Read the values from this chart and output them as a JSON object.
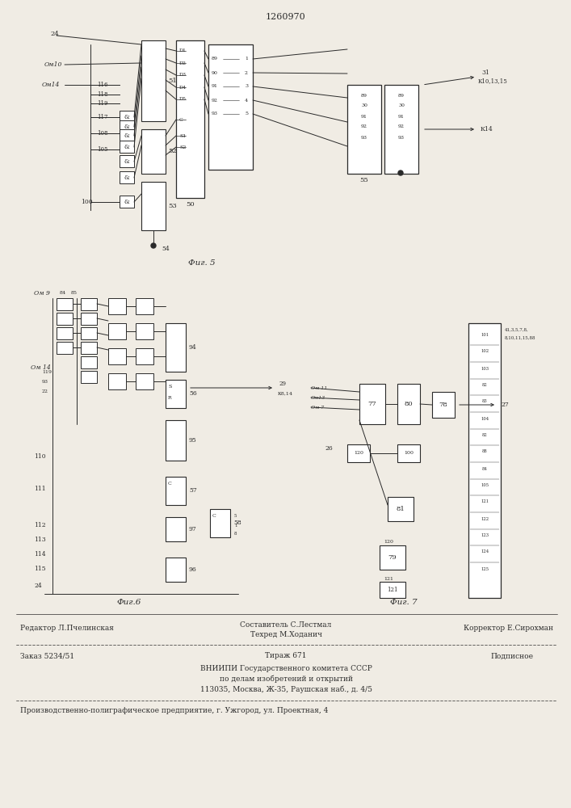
{
  "patent_number": "1260970",
  "fig5_label": "Фиг. 5",
  "fig6_label": "Фиг.6",
  "fig7_label": "Фиг. 7",
  "bg_color": "#f0ece4",
  "line_color": "#2a2a2a",
  "editor_line": "Редактор Л.Пчелинская",
  "compiler_line1": "Составитель С.Лестмал",
  "compiler_line2": "Техред М.Ходанич",
  "corrector_line": "Корректор Е.Сирохман",
  "order_line": "Заказ 5234/51",
  "edition_line": "Тираж 671",
  "signed_line": "Подписное",
  "vniipmi_line1": "ВНИИПИ Государственного комитета СССР",
  "vniipmi_line2": "по делам изобретений и открытий",
  "vniipmi_line3": "113035, Москва, Ж-35, Раушская наб., д. 4/5",
  "footer_last": "Производственно-полиграфическое предприятие, г. Ужгород, ул. Проектная, 4"
}
